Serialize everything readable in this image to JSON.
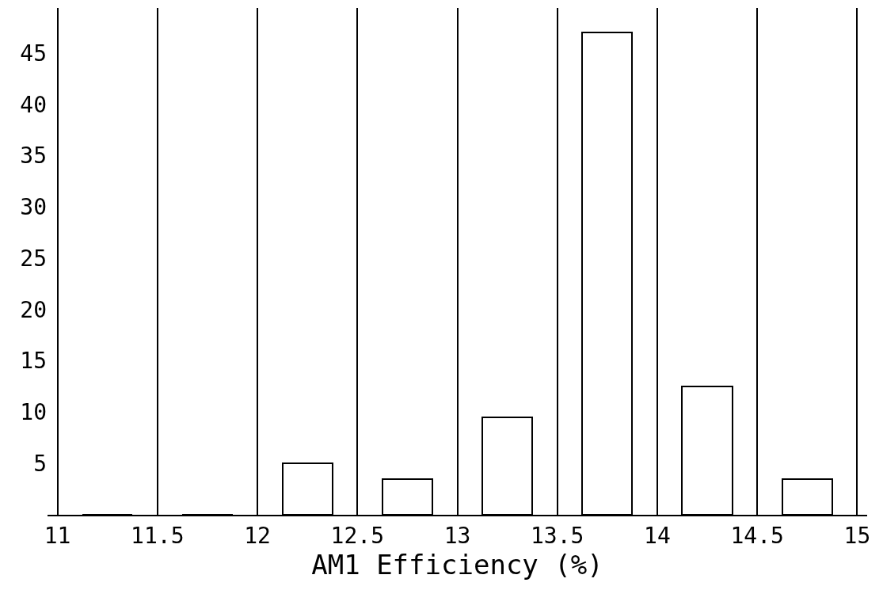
{
  "chart_data": {
    "type": "histogram",
    "xlabel": "AM1 Efficiency (%)",
    "bins": [
      11,
      11.5,
      12,
      12.5,
      13,
      13.5,
      14,
      14.5,
      15
    ],
    "values": [
      0,
      0,
      5,
      3.5,
      9.5,
      47,
      12.5,
      3.5
    ],
    "color": "#000000",
    "xlim": [
      10.95,
      15.05
    ],
    "xticks": [
      11,
      11.5,
      12,
      12.5,
      13,
      13.5,
      14,
      14.5,
      15
    ],
    "ylim": [
      0,
      49.4
    ],
    "yticks": [
      5,
      10,
      15,
      20,
      25,
      30,
      35,
      40,
      45
    ],
    "grid": "x"
  }
}
